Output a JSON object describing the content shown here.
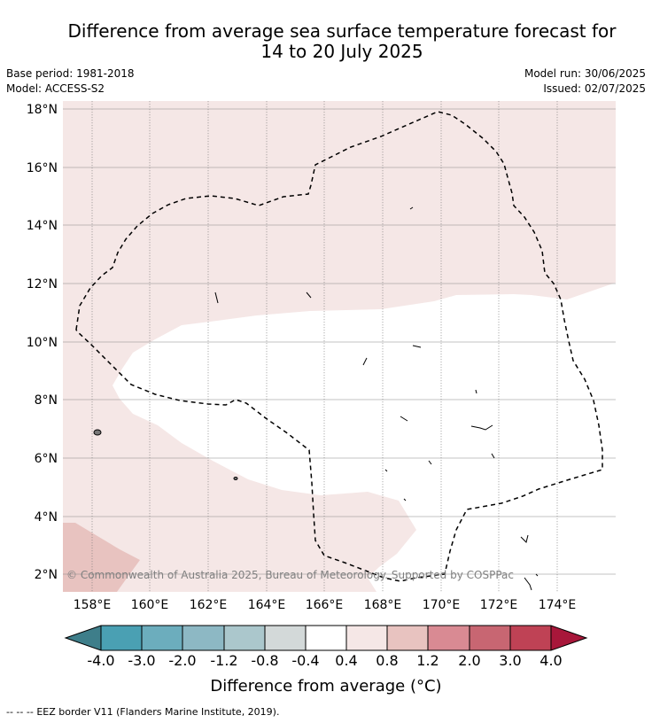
{
  "header": {
    "title_line1": "Difference from average sea surface temperature forecast for",
    "title_line2": "14 to 20 July 2025",
    "base_period": "Base period: 1981-2018",
    "model": "Model: ACCESS-S2",
    "model_run": "Model run: 30/06/2025",
    "issued": "Issued: 02/07/2025"
  },
  "map": {
    "lat_labels": [
      "18°N",
      "16°N",
      "14°N",
      "12°N",
      "10°N",
      "8°N",
      "6°N",
      "4°N",
      "2°N"
    ],
    "lon_labels": [
      "158°E",
      "160°E",
      "162°E",
      "164°E",
      "166°E",
      "168°E",
      "170°E",
      "172°E",
      "174°E"
    ],
    "credit": "© Commonwealth of Australia 2025, Bureau of Meteorology. Supported by COSPPac",
    "colors": {
      "band_0_4_to_0_8": "#f5e7e6",
      "band_0_8_to_1_2": "#e8c3c0",
      "band_neutral": "#ffffff"
    }
  },
  "colorbar": {
    "tick_labels": [
      "-4.0",
      "-3.0",
      "-2.0",
      "-1.2",
      "-0.8",
      "-0.4",
      "0.4",
      "0.8",
      "1.2",
      "2.0",
      "3.0",
      "4.0"
    ],
    "colors": [
      "#3e7e8a",
      "#4aa0b3",
      "#6cadbd",
      "#8db8c4",
      "#abc7cc",
      "#d3d9d9",
      "#ffffff",
      "#f5e7e6",
      "#e8c3c0",
      "#d98a93",
      "#c86672",
      "#bf4255",
      "#a8173a"
    ],
    "label": "Difference from average (°C)"
  },
  "legend": {
    "eez_symbol": "--  --  --",
    "eez_text": "EEZ border V11 (Flanders Marine Institute, 2019)."
  }
}
